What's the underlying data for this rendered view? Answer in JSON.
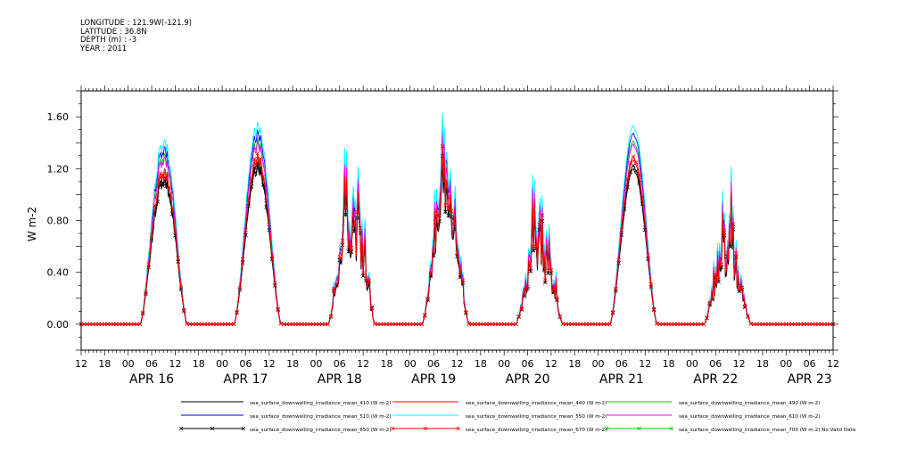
{
  "header": {
    "longitude": "LONGITUDE : 121.9W(-121.9)",
    "latitude": "LATITUDE : 36.8N",
    "depth": "DEPTH (m) : -3",
    "year": "YEAR : 2011"
  },
  "chart_data": {
    "type": "line",
    "title": "",
    "xlabel": "",
    "ylabel": "W m-2",
    "ylim": [
      -0.2,
      1.8
    ],
    "yticks": [
      "0.00",
      "0.40",
      "0.80",
      "1.20",
      "1.60"
    ],
    "ytick_values": [
      0,
      0.4,
      0.8,
      1.2,
      1.6
    ],
    "xlim": [
      "APR 15 12:00",
      "APR 23 12:00"
    ],
    "xticks_hours": [
      "12",
      "18",
      "00",
      "06",
      "12",
      "18",
      "00",
      "06",
      "12",
      "18",
      "00",
      "06",
      "12",
      "18",
      "00",
      "06",
      "12",
      "18",
      "00",
      "06",
      "12",
      "18",
      "00",
      "06",
      "12",
      "18",
      "00",
      "06",
      "12",
      "18",
      "00",
      "06",
      "12"
    ],
    "date_labels": [
      "APR 16",
      "APR 17",
      "APR 18",
      "APR 19",
      "APR 20",
      "APR 21",
      "APR 22",
      "APR 23"
    ],
    "days": [
      {
        "label": "APR 16",
        "rise": 0.625,
        "set": 1.13,
        "peak": 1.22,
        "noise": 0.1,
        "seed": 3
      },
      {
        "label": "APR 17",
        "rise": 1.625,
        "set": 2.13,
        "peak": 1.3,
        "noise": 0.06,
        "seed": 7
      },
      {
        "label": "APR 18",
        "rise": 2.625,
        "set": 3.13,
        "peak": 1.05,
        "noise": 0.55,
        "seed": 11
      },
      {
        "label": "APR 19",
        "rise": 3.625,
        "set": 4.13,
        "peak": 1.1,
        "noise": 0.3,
        "seed": 13
      },
      {
        "label": "APR 20",
        "rise": 4.625,
        "set": 5.13,
        "peak": 0.85,
        "noise": 0.6,
        "seed": 17
      },
      {
        "label": "APR 21",
        "rise": 5.625,
        "set": 6.13,
        "peak": 1.27,
        "noise": 0.02,
        "seed": 19
      },
      {
        "label": "APR 22",
        "rise": 6.625,
        "set": 7.13,
        "peak": 0.78,
        "noise": 0.55,
        "seed": 23
      }
    ],
    "series": [
      {
        "name": "sea_surface_downwelling_irradiance_mean_410 (W m-2)",
        "color": "#000000",
        "scale": 0.96,
        "marker": "none"
      },
      {
        "name": "sea_surface_downwelling_irradiance_mean_440 (W m-2)",
        "color": "#ff0000",
        "scale": 1.0,
        "marker": "none"
      },
      {
        "name": "sea_surface_downwelling_irradiance_mean_490 (W m-2)",
        "color": "#00cc00",
        "scale": 1.1,
        "marker": "none"
      },
      {
        "name": "sea_surface_downwelling_irradiance_mean_510 (W m-2)",
        "color": "#0000ff",
        "scale": 1.18,
        "marker": "none"
      },
      {
        "name": "sea_surface_downwelling_irradiance_mean_550 (W m-2)",
        "color": "#00ffff",
        "scale": 1.21,
        "marker": "none"
      },
      {
        "name": "sea_surface_downwelling_irradiance_mean_610 (W m-2)",
        "color": "#ff00ff",
        "scale": 1.08,
        "marker": "none"
      },
      {
        "name": "sea_surface_downwelling_irradiance_mean_650 (W m-2)",
        "color": "#000000",
        "scale": 0.98,
        "marker": "x"
      },
      {
        "name": "sea_surface_downwelling_irradiance_mean_670 (W m-2)",
        "color": "#ff0000",
        "scale": 1.02,
        "marker": "x"
      },
      {
        "name": "sea_surface_downwelling_irradiance_mean_700 (W m-2) No Valid Data",
        "color": "#00cc00",
        "scale": 0,
        "marker": "x"
      }
    ],
    "legend_position": "bottom"
  }
}
